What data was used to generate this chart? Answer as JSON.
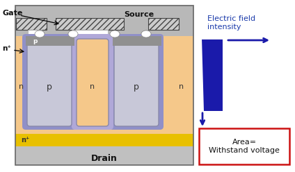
{
  "fig_width": 4.24,
  "fig_height": 2.48,
  "dpi": 100,
  "bg_color": "#ffffff",
  "colors": {
    "outer_frame_gray": "#c8c8c8",
    "source_gray": "#b8b8b8",
    "drain_gray": "#c0c0c0",
    "hatch_bg": "#cccccc",
    "n_drift_orange": "#f5c88a",
    "p_well_gray": "#c8c8d8",
    "purple_depletion": "#9090c8",
    "purple_depletion2": "#b0a8d8",
    "nplus_yellow": "#e8c000",
    "gate_oxide_white": "#ffffff",
    "blue_rect": "#1a1aaa",
    "arrow_color": "#1a1aaa",
    "red_box": "#cc1111",
    "text_dark": "#111111",
    "text_blue": "#1a3aaa",
    "dark_gate_metal": "#909090"
  },
  "gate_label": "Gate",
  "source_label": "Source",
  "drain_label": "Drain",
  "ef_title": "Electric field\nintensity",
  "area_label": "Area=\nWithstand voltage"
}
